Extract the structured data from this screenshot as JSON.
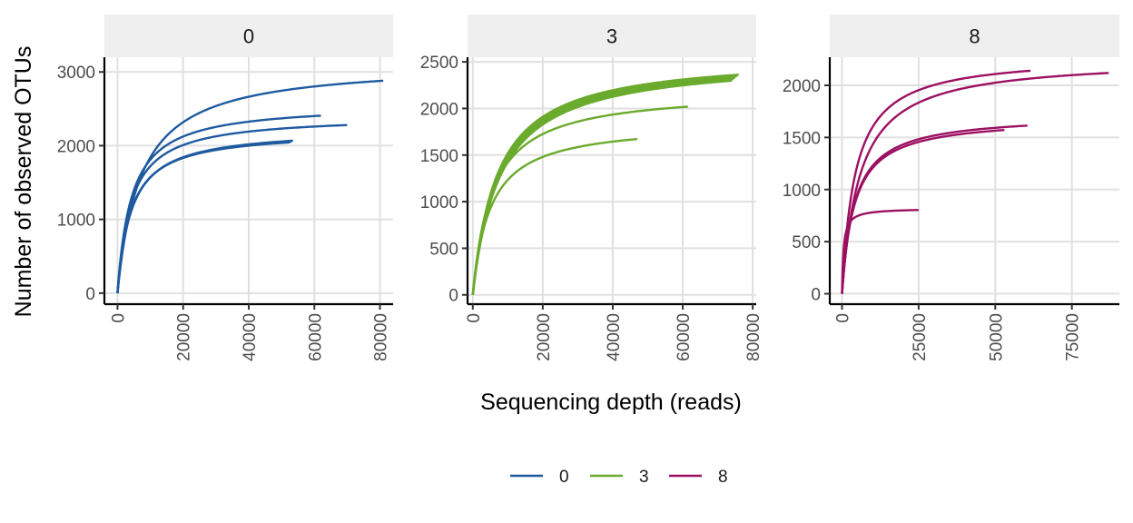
{
  "chart_data": {
    "type": "line",
    "xlabel": "Sequencing depth (reads)",
    "ylabel": "Number of observed OTUs",
    "grid": true,
    "legend_position": "bottom",
    "legend": [
      {
        "label": "0",
        "color": "#1f5aa0"
      },
      {
        "label": "3",
        "color": "#6aaa2c"
      },
      {
        "label": "8",
        "color": "#9b1062"
      }
    ],
    "panels": [
      {
        "strip_label": "0",
        "color": "#1f5aa0",
        "xlim": [
          -4000,
          84000
        ],
        "ylim": [
          -150,
          3200
        ],
        "x_ticks": [
          0,
          20000,
          40000,
          60000,
          80000
        ],
        "x_tick_labels": [
          "0",
          "20000",
          "40000",
          "60000",
          "80000"
        ],
        "y_ticks": [
          0,
          1000,
          2000,
          3000
        ],
        "y_tick_labels": [
          "0",
          "1000",
          "2000",
          "3000"
        ],
        "series": [
          {
            "asymptote": 3130,
            "half_sat": 7000,
            "xmax": 81000
          },
          {
            "asymptote": 2570,
            "half_sat": 4200,
            "xmax": 62000
          },
          {
            "asymptote": 2410,
            "half_sat": 4000,
            "xmax": 70000
          },
          {
            "asymptote": 2230,
            "half_sat": 4200,
            "xmax": 53500
          },
          {
            "asymptote": 2215,
            "half_sat": 4100,
            "xmax": 53000
          },
          {
            "asymptote": 2200,
            "half_sat": 4000,
            "xmax": 52500
          }
        ]
      },
      {
        "strip_label": "3",
        "color": "#6aaa2c",
        "xlim": [
          -1500,
          81000
        ],
        "ylim": [
          -100,
          2550
        ],
        "x_ticks": [
          0,
          20000,
          40000,
          60000,
          80000
        ],
        "x_tick_labels": [
          "0",
          "20000",
          "40000",
          "60000",
          "80000"
        ],
        "y_ticks": [
          0,
          500,
          1000,
          1500,
          2000,
          2500
        ],
        "y_tick_labels": [
          "0",
          "500",
          "1000",
          "1500",
          "2000",
          "2500"
        ],
        "series": [
          {
            "asymptote": 2580,
            "half_sat": 7000,
            "xmax": 76000
          },
          {
            "asymptote": 2570,
            "half_sat": 7200,
            "xmax": 75500
          },
          {
            "asymptote": 2560,
            "half_sat": 7400,
            "xmax": 75000
          },
          {
            "asymptote": 2550,
            "half_sat": 7600,
            "xmax": 74500
          },
          {
            "asymptote": 2540,
            "half_sat": 7800,
            "xmax": 74000
          },
          {
            "asymptote": 2200,
            "half_sat": 5500,
            "xmax": 61500
          },
          {
            "asymptote": 1850,
            "half_sat": 5000,
            "xmax": 47000
          }
        ]
      },
      {
        "strip_label": "8",
        "color": "#9b1062",
        "xlim": [
          -4000,
          90500
        ],
        "ylim": [
          -100,
          2270
        ],
        "x_ticks": [
          0,
          25000,
          50000,
          75000
        ],
        "x_tick_labels": [
          "0",
          "25000",
          "50000",
          "75000"
        ],
        "y_ticks": [
          0,
          500,
          1000,
          1500,
          2000
        ],
        "y_tick_labels": [
          "0",
          "500",
          "1000",
          "1500",
          "2000"
        ],
        "series": [
          {
            "asymptote": 2290,
            "half_sat": 4300,
            "xmax": 61500
          },
          {
            "asymptote": 2260,
            "half_sat": 5800,
            "xmax": 87000
          },
          {
            "asymptote": 1720,
            "half_sat": 4000,
            "xmax": 60500
          },
          {
            "asymptote": 1690,
            "half_sat": 4000,
            "xmax": 53000
          },
          {
            "asymptote": 820,
            "half_sat": 500,
            "xmax": 25000
          }
        ]
      }
    ]
  }
}
